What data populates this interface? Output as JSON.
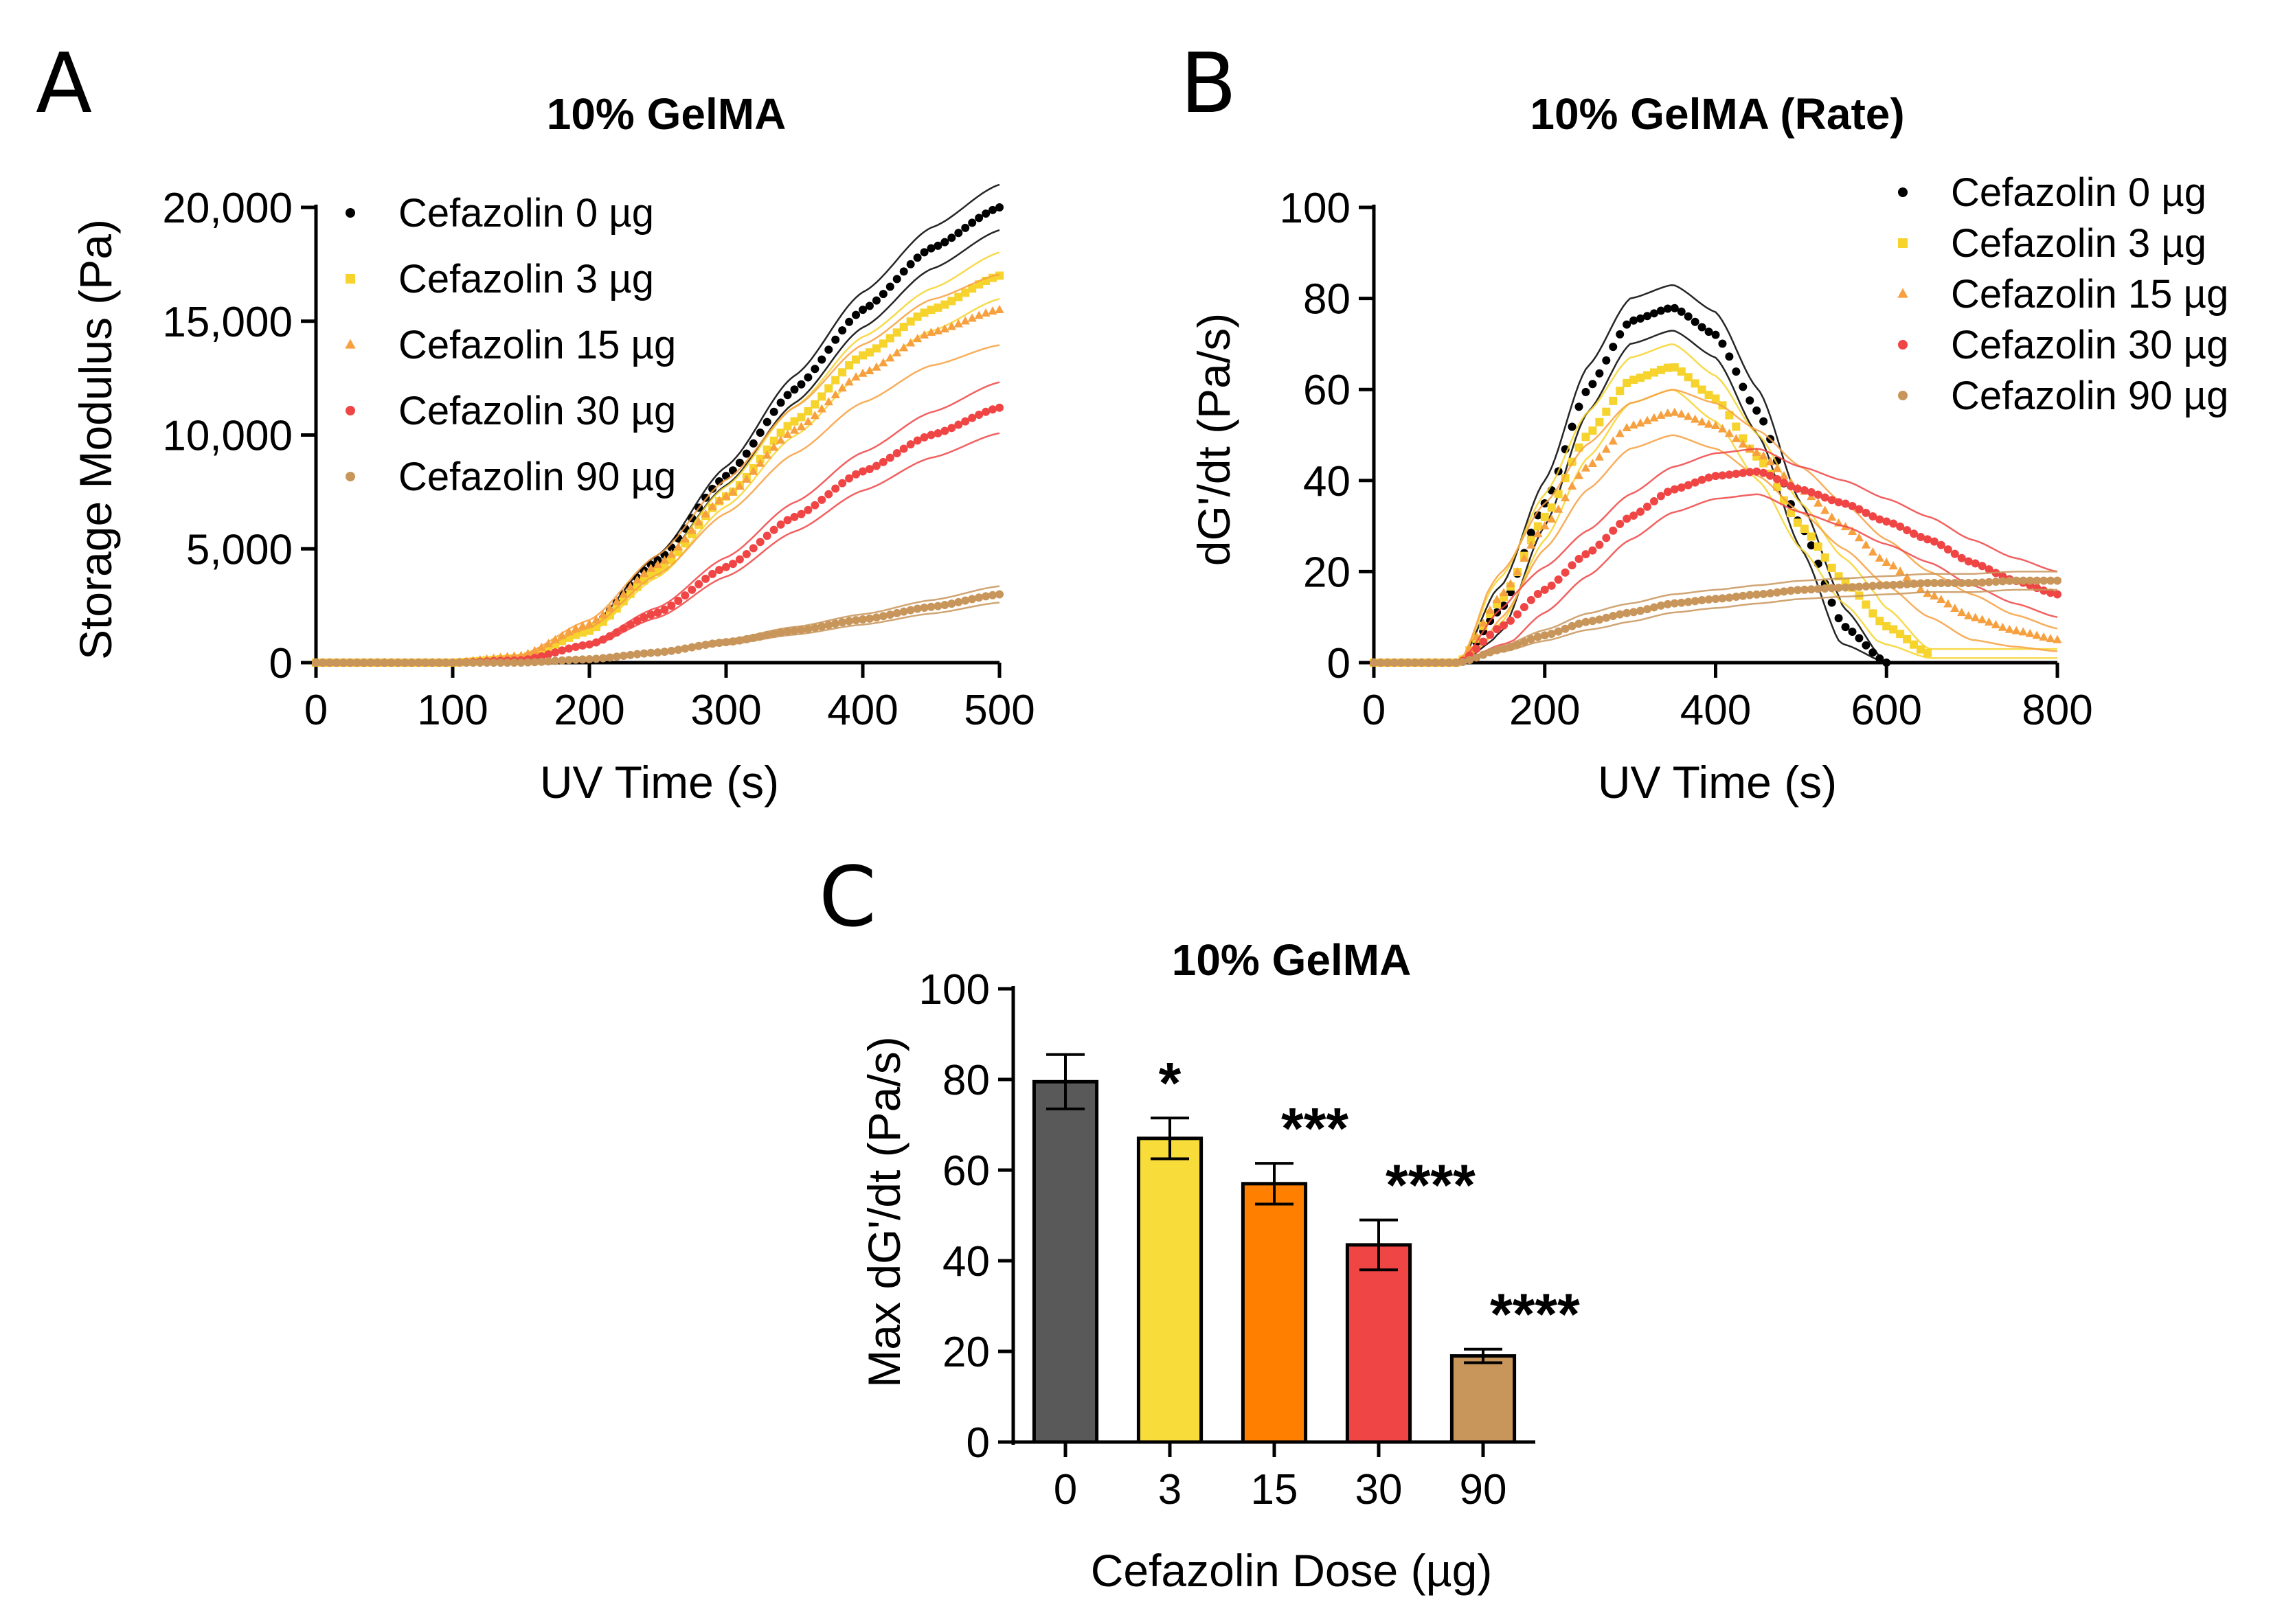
{
  "chart_data": [
    {
      "id": "A",
      "panel_label": "A",
      "type": "line",
      "title": "10% GelMA",
      "xlabel": "UV Time (s)",
      "ylabel": "Storage Modulus (Pa)",
      "xlim": [
        0,
        500
      ],
      "ylim": [
        0,
        20000
      ],
      "x_ticks": [
        0,
        100,
        200,
        300,
        400,
        500
      ],
      "y_ticks": [
        0,
        5000,
        10000,
        15000,
        20000
      ],
      "y_tick_labels": [
        "0",
        "5,000",
        "10,000",
        "15,000",
        "20,000"
      ],
      "series": [
        {
          "name": "Cefazolin 0 µg",
          "color": "#000000",
          "marker": "circle",
          "x": [
            0,
            100,
            150,
            200,
            250,
            300,
            350,
            400,
            450,
            500
          ],
          "y": [
            0,
            0,
            200,
            1500,
            4500,
            8200,
            12000,
            15500,
            18200,
            20000
          ],
          "spread": 0.05
        },
        {
          "name": "Cefazolin 3 µg",
          "color": "#F6D32D",
          "marker": "square",
          "x": [
            0,
            100,
            150,
            200,
            250,
            300,
            350,
            400,
            450,
            500
          ],
          "y": [
            0,
            0,
            200,
            1400,
            4000,
            7300,
            10600,
            13500,
            15500,
            17000
          ],
          "spread": 0.06
        },
        {
          "name": "Cefazolin 15 µg",
          "color": "#F7A040",
          "marker": "triangle",
          "x": [
            0,
            100,
            150,
            200,
            250,
            300,
            350,
            400,
            450,
            500
          ],
          "y": [
            0,
            0,
            300,
            1700,
            4300,
            7300,
            10200,
            12700,
            14500,
            15500
          ],
          "spread": 0.1
        },
        {
          "name": "Cefazolin 30 µg",
          "color": "#F04545",
          "marker": "circle",
          "x": [
            0,
            100,
            150,
            200,
            250,
            300,
            350,
            400,
            450,
            500
          ],
          "y": [
            0,
            0,
            100,
            800,
            2200,
            4200,
            6400,
            8400,
            10000,
            11200
          ],
          "spread": 0.1
        },
        {
          "name": "Cefazolin 90 µg",
          "color": "#C8955A",
          "marker": "circle",
          "x": [
            0,
            100,
            150,
            200,
            250,
            300,
            350,
            400,
            450,
            500
          ],
          "y": [
            0,
            0,
            0,
            150,
            450,
            900,
            1400,
            1900,
            2450,
            3000
          ],
          "spread": 0.12
        }
      ]
    },
    {
      "id": "B",
      "panel_label": "B",
      "type": "line",
      "title": "10% GelMA (Rate)",
      "xlabel": "UV Time (s)",
      "ylabel": "dG'/dt (Pa/s)",
      "xlim": [
        0,
        800
      ],
      "ylim": [
        0,
        100
      ],
      "x_ticks": [
        0,
        200,
        400,
        600,
        800
      ],
      "y_ticks": [
        0,
        20,
        40,
        60,
        80,
        100
      ],
      "y_tick_labels": [
        "0",
        "20",
        "40",
        "60",
        "80",
        "100"
      ],
      "series": [
        {
          "name": "Cefazolin 0 µg",
          "color": "#000000",
          "marker": "circle",
          "x": [
            0,
            100,
            150,
            200,
            250,
            300,
            350,
            400,
            450,
            500,
            550,
            600
          ],
          "y": [
            0,
            0,
            12,
            35,
            60,
            75,
            78,
            72,
            55,
            30,
            8,
            0
          ],
          "spread": 5
        },
        {
          "name": "Cefazolin 3 µg",
          "color": "#F6D32D",
          "marker": "square",
          "x": [
            0,
            100,
            150,
            200,
            250,
            300,
            350,
            400,
            450,
            500,
            550,
            600,
            650
          ],
          "y": [
            0,
            0,
            14,
            32,
            50,
            62,
            65,
            58,
            45,
            30,
            18,
            8,
            2
          ],
          "spread": 5
        },
        {
          "name": "Cefazolin 15 µg",
          "color": "#F7A040",
          "marker": "triangle",
          "x": [
            0,
            100,
            150,
            200,
            250,
            300,
            350,
            400,
            450,
            500,
            550,
            600,
            650,
            700,
            750,
            800
          ],
          "y": [
            0,
            0,
            15,
            30,
            43,
            52,
            55,
            52,
            46,
            38,
            30,
            22,
            15,
            10,
            7,
            5
          ],
          "spread": 5
        },
        {
          "name": "Cefazolin 30 µg",
          "color": "#F04545",
          "marker": "circle",
          "x": [
            0,
            100,
            150,
            200,
            250,
            300,
            350,
            400,
            450,
            500,
            550,
            600,
            650,
            700,
            750,
            800
          ],
          "y": [
            0,
            0,
            8,
            16,
            24,
            32,
            38,
            41,
            42,
            38,
            35,
            31,
            27,
            22,
            18,
            15
          ],
          "spread": 5
        },
        {
          "name": "Cefazolin 90 µg",
          "color": "#C8955A",
          "marker": "circle",
          "x": [
            0,
            100,
            150,
            200,
            250,
            300,
            350,
            400,
            450,
            500,
            550,
            600,
            650,
            700,
            750,
            800
          ],
          "y": [
            0,
            0,
            3,
            6,
            9,
            11,
            13,
            14,
            15,
            16,
            16.5,
            17,
            17.5,
            17.5,
            18,
            18
          ],
          "spread": 2
        }
      ]
    },
    {
      "id": "C",
      "panel_label": "C",
      "type": "bar",
      "title": "10% GelMA",
      "xlabel": "Cefazolin Dose (µg)",
      "ylabel": "Max dG'/dt (Pa/s)",
      "ylim": [
        0,
        100
      ],
      "y_ticks": [
        0,
        20,
        40,
        60,
        80,
        100
      ],
      "y_tick_labels": [
        "0",
        "20",
        "40",
        "60",
        "80",
        "100"
      ],
      "categories": [
        "0",
        "3",
        "15",
        "30",
        "90"
      ],
      "values": [
        79.5,
        67,
        57,
        43.5,
        19
      ],
      "errors": [
        6,
        4.5,
        4.5,
        5.5,
        1.5
      ],
      "colors": [
        "#595959",
        "#F8DC3A",
        "#FF8000",
        "#F04545",
        "#C8955A"
      ],
      "significance": [
        "",
        "*",
        "***",
        "****",
        "****"
      ]
    }
  ]
}
